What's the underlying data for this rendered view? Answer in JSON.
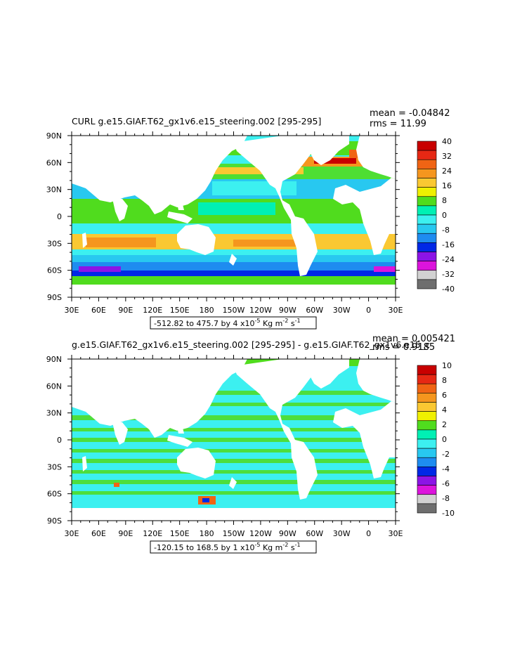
{
  "panels": [
    {
      "title": "CURL g.e15.GIAF.T62_gx1v6.e15_steering.002 [295-295]",
      "mean_label": "mean = -0.04842",
      "rms_label": "rms = 11.99",
      "range_label": "-512.82 to 475.7 by 4 x10",
      "units_tail": " Kg m",
      "lat_labels": [
        "90N",
        "60N",
        "30N",
        "0",
        "30S",
        "60S",
        "90S"
      ],
      "lon_labels": [
        "30E",
        "60E",
        "90E",
        "120E",
        "150E",
        "180",
        "150W",
        "120W",
        "90W",
        "60W",
        "30W",
        "0",
        "30E"
      ],
      "colorbar_labels": [
        "40",
        "32",
        "24",
        "16",
        "8",
        "0",
        "-8",
        "-16",
        "-24",
        "-32",
        "-40"
      ]
    },
    {
      "title": "g.e15.GIAF.T62_gx1v6.e15_steering.002 [295-295] - g.e15.GIAF.T62_gx1v6.e15_c",
      "mean_label": "mean = 0.005421",
      "rms_label": "rms = 0.9185",
      "range_label": "-120.15 to 168.5 by 1 x10",
      "units_tail": " Kg m",
      "lat_labels": [
        "90N",
        "60N",
        "30N",
        "0",
        "30S",
        "60S",
        "90S"
      ],
      "lon_labels": [
        "30E",
        "60E",
        "90E",
        "120E",
        "150E",
        "180",
        "150W",
        "120W",
        "90W",
        "60W",
        "30W",
        "0",
        "30E"
      ],
      "colorbar_labels": [
        "10",
        "8",
        "6",
        "4",
        "2",
        "0",
        "-2",
        "-4",
        "-6",
        "-8",
        "-10"
      ]
    }
  ],
  "units_exp": {
    "ten": "-5",
    "m": "-2",
    "s": "-1",
    "s_letter": " s"
  },
  "colorbar_colors": [
    "#c80000",
    "#e62814",
    "#f06414",
    "#f5961e",
    "#fac832",
    "#f0f000",
    "#50dc1e",
    "#00f0b4",
    "#3cf0f0",
    "#28c8f0",
    "#1e8cf0",
    "#0028e6",
    "#8c14e6",
    "#dc14dc",
    "#d2d2d2",
    "#6e6e6e"
  ],
  "colors": {
    "ocean": "#3cf0f0",
    "land": "#ffffff"
  }
}
